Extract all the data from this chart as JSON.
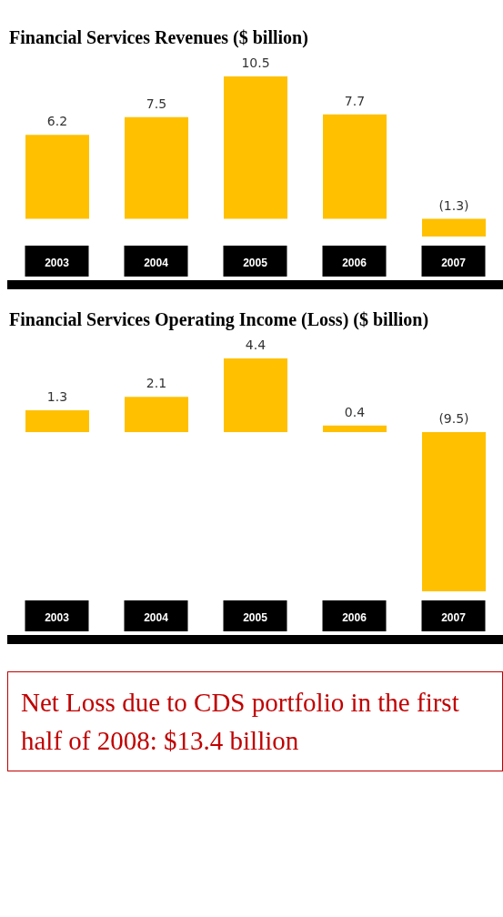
{
  "chart_data": [
    {
      "type": "bar",
      "title": "Financial Services Revenues ($ billion)",
      "categories": [
        "2003",
        "2004",
        "2005",
        "2006",
        "2007"
      ],
      "values": [
        6.2,
        7.5,
        10.5,
        7.7,
        -1.3
      ],
      "value_labels": [
        "6.2",
        "7.5",
        "10.5",
        "7.7",
        "(1.3)"
      ],
      "color": "#ffc000"
    },
    {
      "type": "bar",
      "title": "Financial Services Operating Income (Loss) ($ billion)",
      "categories": [
        "2003",
        "2004",
        "2005",
        "2006",
        "2007"
      ],
      "values": [
        1.3,
        2.1,
        4.4,
        0.4,
        -9.5
      ],
      "value_labels": [
        "1.3",
        "2.1",
        "4.4",
        "0.4",
        "(9.5)"
      ],
      "color": "#ffc000",
      "annotations": [
        "Net Loss due to CDS portfolio in the first half of 2008: $13.4 billion"
      ]
    }
  ]
}
